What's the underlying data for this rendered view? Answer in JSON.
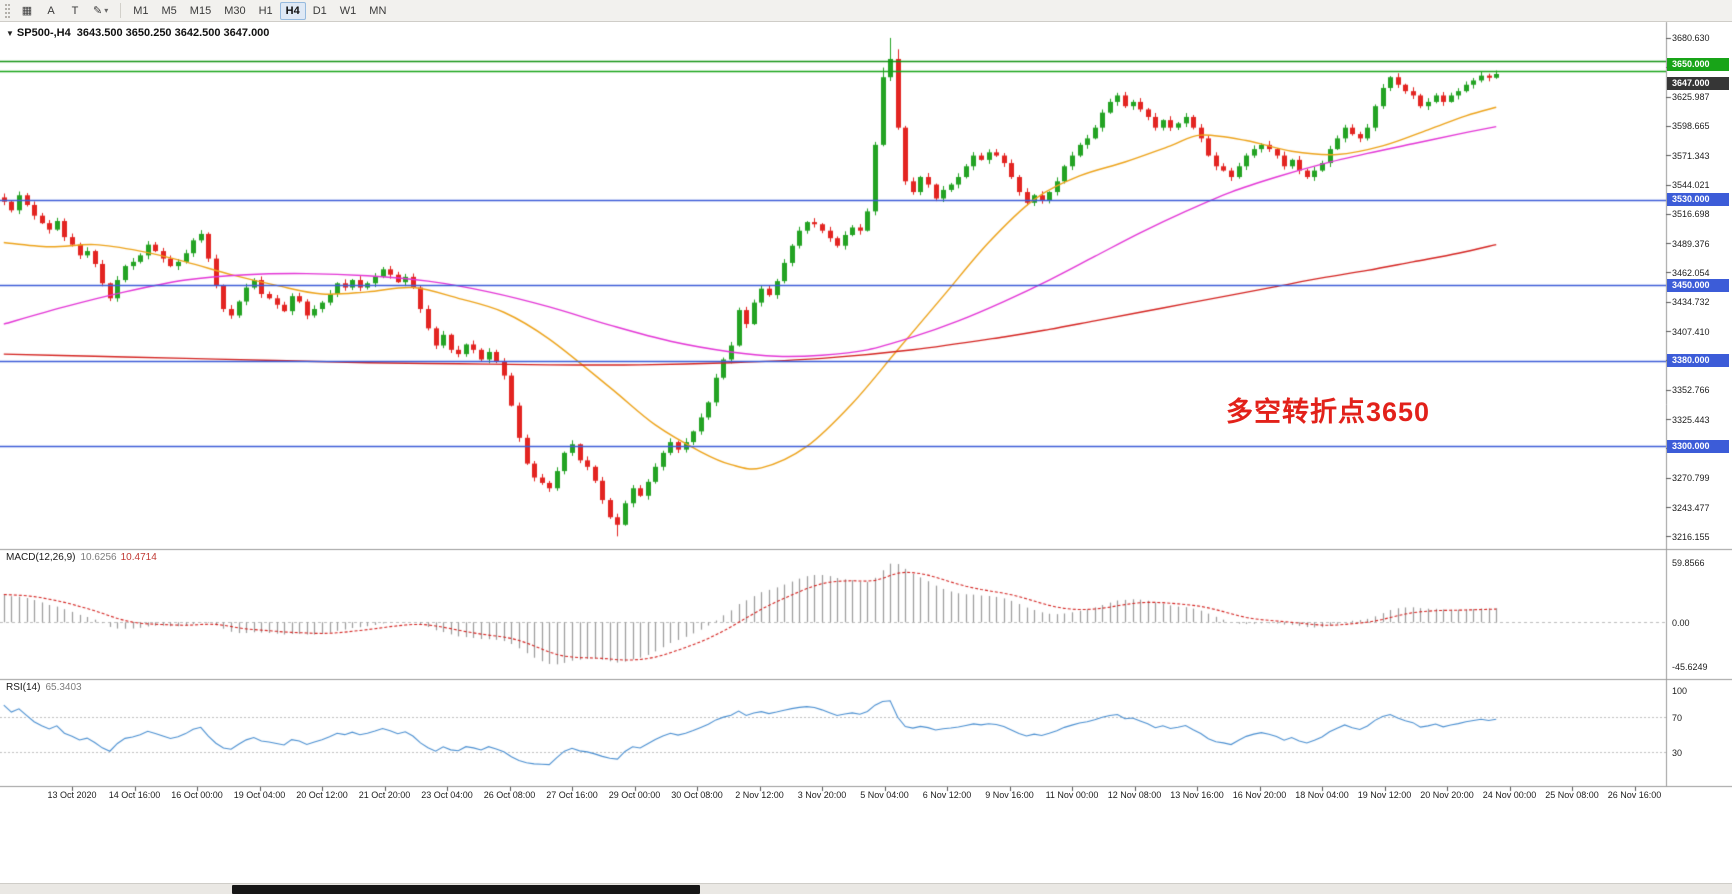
{
  "toolbar": {
    "tools": [
      {
        "name": "charts-grid",
        "glyph": "▦"
      },
      {
        "name": "text-label-tool",
        "label": "A"
      },
      {
        "name": "text-tool",
        "label": "T"
      },
      {
        "name": "draw-tools",
        "glyph": "✎",
        "caret": "▾"
      }
    ],
    "timeframes": [
      "M1",
      "M5",
      "M15",
      "M30",
      "H1",
      "H4",
      "D1",
      "W1",
      "MN"
    ],
    "active_timeframe": "H4"
  },
  "chart": {
    "collapse_icon": "▼",
    "symbol_text": "SP500-,H4",
    "ohlc_text": "3643.500 3650.250 3642.500 3647.000",
    "annotation": "多空转折点3650",
    "annotation_color": "#e2211a"
  },
  "chart_data": {
    "type": "candlestick",
    "symbol": "SP500-",
    "timeframe": "H4",
    "title": "SP500-,H4 3643.500 3650.250 3642.500 3647.000",
    "last_bar": {
      "open": 3643.5,
      "high": 3650.25,
      "low": 3642.5,
      "close": 3647.0
    },
    "price_axis": {
      "ticks": [
        "3680.630",
        "3653.309",
        "3625.987",
        "3598.665",
        "3571.343",
        "3544.021",
        "3516.698",
        "3489.376",
        "3462.054",
        "3434.732",
        "3407.410",
        "3380.088",
        "3352.766",
        "3325.443",
        "3298.121",
        "3270.799",
        "3243.477",
        "3216.155"
      ],
      "range": [
        3210,
        3688
      ]
    },
    "current_price_badge": {
      "text": "3647.000",
      "bg": "#363636"
    },
    "h_lines": [
      {
        "price": 3659.0,
        "color": "#149414",
        "width": 1.6,
        "label": null,
        "label_bg": null
      },
      {
        "price": 3650.0,
        "color": "#18a418",
        "width": 1.4,
        "label": "3650.000",
        "label_bg": "#18a418"
      },
      {
        "price": 3530.0,
        "color": "#3c5cd8",
        "width": 1.6,
        "label": "3530.000",
        "label_bg": "#3c5cd8"
      },
      {
        "price": 3450.0,
        "color": "#3c5cd8",
        "width": 1.6,
        "label": "3450.000",
        "label_bg": "#3c5cd8"
      },
      {
        "price": 3380.0,
        "color": "#3c5cd8",
        "width": 1.6,
        "label": "3380.000",
        "label_bg": "#3c5cd8"
      },
      {
        "price": 3300.0,
        "color": "#3c5cd8",
        "width": 1.6,
        "label": "3300.000",
        "label_bg": "#3c5cd8"
      }
    ],
    "candles": {
      "up_color": "#23a323",
      "down_color": "#e32421",
      "closes": [
        3528,
        3520,
        3534,
        3525,
        3515,
        3508,
        3502,
        3510,
        3495,
        3488,
        3478,
        3482,
        3470,
        3452,
        3438,
        3455,
        3468,
        3472,
        3478,
        3488,
        3482,
        3475,
        3468,
        3472,
        3480,
        3492,
        3498,
        3475,
        3450,
        3428,
        3422,
        3435,
        3448,
        3455,
        3442,
        3438,
        3432,
        3426,
        3440,
        3435,
        3422,
        3428,
        3434,
        3442,
        3452,
        3448,
        3455,
        3448,
        3452,
        3458,
        3465,
        3460,
        3453,
        3458,
        3448,
        3428,
        3410,
        3394,
        3404,
        3390,
        3386,
        3395,
        3390,
        3381,
        3388,
        3379,
        3366,
        3338,
        3308,
        3284,
        3271,
        3266,
        3261,
        3277,
        3294,
        3302,
        3287,
        3281,
        3268,
        3250,
        3234,
        3227,
        3247,
        3261,
        3254,
        3267,
        3281,
        3294,
        3304,
        3297,
        3304,
        3314,
        3327,
        3341,
        3364,
        3381,
        3394,
        3427,
        3414,
        3434,
        3447,
        3441,
        3454,
        3471,
        3487,
        3501,
        3509,
        3507,
        3501,
        3494,
        3487,
        3497,
        3504,
        3501,
        3519,
        3581,
        3644,
        3661,
        3597,
        3547,
        3537,
        3551,
        3544,
        3531,
        3539,
        3544,
        3551,
        3561,
        3571,
        3567,
        3574,
        3571,
        3564,
        3551,
        3537,
        3527,
        3534,
        3529,
        3537,
        3547,
        3561,
        3571,
        3581,
        3587,
        3597,
        3611,
        3621,
        3627,
        3617,
        3621,
        3614,
        3607,
        3597,
        3604,
        3597,
        3601,
        3607,
        3597,
        3587,
        3571,
        3561,
        3557,
        3551,
        3561,
        3571,
        3577,
        3581,
        3577,
        3571,
        3561,
        3567,
        3557,
        3551,
        3557,
        3564,
        3577,
        3587,
        3597,
        3591,
        3587,
        3597,
        3617,
        3634,
        3644,
        3637,
        3631,
        3627,
        3617,
        3621,
        3627,
        3621,
        3627,
        3631,
        3637,
        3641,
        3645.5,
        3643.5,
        3647
      ],
      "wick_overrides": {
        "81": {
          "low": 3216.2
        },
        "116": {
          "high": 3653
        },
        "117": {
          "high": 3680.6
        },
        "118": {
          "high": 3670
        },
        "197": {
          "high": 3650.25,
          "low": 3642.5
        }
      }
    },
    "moving_averages": [
      {
        "name": "ma-fast",
        "color": "#eda31a",
        "points": [
          [
            0,
            3490
          ],
          [
            6,
            3486
          ],
          [
            12,
            3488
          ],
          [
            18,
            3482
          ],
          [
            24,
            3472
          ],
          [
            30,
            3460
          ],
          [
            36,
            3450
          ],
          [
            42,
            3442
          ],
          [
            48,
            3444
          ],
          [
            54,
            3448
          ],
          [
            60,
            3438
          ],
          [
            66,
            3425
          ],
          [
            72,
            3400
          ],
          [
            80,
            3355
          ],
          [
            86,
            3320
          ],
          [
            92,
            3295
          ],
          [
            96,
            3283
          ],
          [
            100,
            3280
          ],
          [
            106,
            3300
          ],
          [
            112,
            3340
          ],
          [
            118,
            3390
          ],
          [
            124,
            3440
          ],
          [
            130,
            3490
          ],
          [
            136,
            3530
          ],
          [
            142,
            3552
          ],
          [
            148,
            3565
          ],
          [
            154,
            3580
          ],
          [
            158,
            3590
          ],
          [
            164,
            3585
          ],
          [
            170,
            3575
          ],
          [
            176,
            3572
          ],
          [
            182,
            3580
          ],
          [
            188,
            3595
          ],
          [
            193,
            3608
          ],
          [
            197,
            3616
          ]
        ]
      },
      {
        "name": "ma-mid",
        "color": "#e335d6",
        "points": [
          [
            0,
            3414
          ],
          [
            8,
            3430
          ],
          [
            16,
            3444
          ],
          [
            24,
            3455
          ],
          [
            32,
            3460
          ],
          [
            40,
            3461
          ],
          [
            48,
            3459
          ],
          [
            56,
            3454
          ],
          [
            64,
            3444
          ],
          [
            72,
            3430
          ],
          [
            80,
            3413
          ],
          [
            88,
            3398
          ],
          [
            96,
            3388
          ],
          [
            102,
            3384
          ],
          [
            108,
            3385
          ],
          [
            114,
            3390
          ],
          [
            120,
            3402
          ],
          [
            126,
            3417
          ],
          [
            132,
            3435
          ],
          [
            138,
            3455
          ],
          [
            144,
            3477
          ],
          [
            150,
            3499
          ],
          [
            156,
            3519
          ],
          [
            162,
            3537
          ],
          [
            168,
            3551
          ],
          [
            174,
            3563
          ],
          [
            180,
            3573
          ],
          [
            186,
            3582
          ],
          [
            192,
            3591
          ],
          [
            197,
            3598
          ]
        ]
      },
      {
        "name": "ma-slow",
        "color": "#d42320",
        "points": [
          [
            0,
            3386
          ],
          [
            12,
            3384
          ],
          [
            24,
            3382
          ],
          [
            36,
            3380
          ],
          [
            48,
            3378
          ],
          [
            60,
            3377
          ],
          [
            72,
            3376
          ],
          [
            84,
            3376
          ],
          [
            96,
            3378
          ],
          [
            108,
            3382
          ],
          [
            120,
            3390
          ],
          [
            132,
            3402
          ],
          [
            138,
            3409
          ],
          [
            144,
            3417
          ],
          [
            150,
            3425
          ],
          [
            156,
            3433
          ],
          [
            162,
            3441
          ],
          [
            168,
            3449
          ],
          [
            174,
            3457
          ],
          [
            180,
            3464
          ],
          [
            186,
            3472
          ],
          [
            192,
            3480
          ],
          [
            197,
            3488
          ]
        ]
      }
    ],
    "indicator_warmup_closes": [
      3358,
      3366,
      3373,
      3380,
      3388,
      3396,
      3402,
      3396,
      3406,
      3413,
      3420,
      3416,
      3423,
      3430,
      3438,
      3446,
      3442,
      3450,
      3458,
      3466,
      3474,
      3468,
      3476,
      3484,
      3492,
      3498,
      3493,
      3500,
      3506,
      3512,
      3518,
      3514,
      3522,
      3526,
      3530,
      3532
    ],
    "macd": {
      "name": "MACD(12,26,9)",
      "value_main": "10.6256",
      "value_signal": "10.4714",
      "axis_labels": [
        "59.8566",
        "0.00",
        "-45.6249"
      ],
      "histogram_color": "#9c9c9c",
      "signal_color": "#d42320"
    },
    "rsi": {
      "name": "RSI(14)",
      "value": "65.3403",
      "axis_labels": [
        "100",
        "70",
        "30"
      ],
      "levels": [
        70,
        30
      ],
      "line_color": "#4a8fd1"
    },
    "time_axis": {
      "labels": [
        "13 Oct 2020",
        "14 Oct 16:00",
        "16 Oct 00:00",
        "19 Oct 04:00",
        "20 Oct 12:00",
        "21 Oct 20:00",
        "23 Oct 04:00",
        "26 Oct 08:00",
        "27 Oct 16:00",
        "29 Oct 00:00",
        "30 Oct 08:00",
        "2 Nov 12:00",
        "3 Nov 20:00",
        "5 Nov 04:00",
        "6 Nov 12:00",
        "9 Nov 16:00",
        "11 Nov 00:00",
        "12 Nov 08:00",
        "13 Nov 16:00",
        "16 Nov 20:00",
        "18 Nov 04:00",
        "19 Nov 12:00",
        "20 Nov 20:00",
        "24 Nov 00:00",
        "25 Nov 08:00",
        "26 Nov 16:00"
      ]
    }
  }
}
